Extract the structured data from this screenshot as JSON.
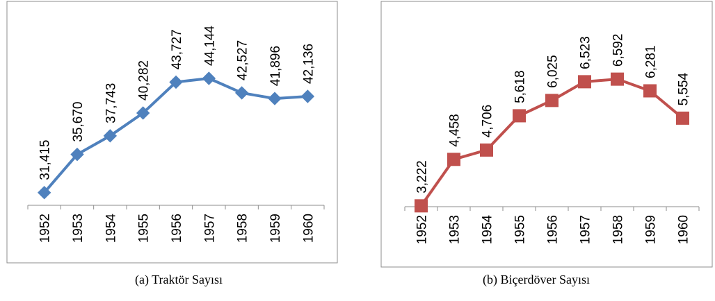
{
  "chart_data": [
    {
      "type": "line",
      "caption": "(a) Traktör Sayısı",
      "categories": [
        "1952",
        "1953",
        "1954",
        "1955",
        "1956",
        "1957",
        "1958",
        "1959",
        "1960"
      ],
      "values": [
        31415,
        35670,
        37743,
        40282,
        43727,
        44144,
        42527,
        41896,
        42136
      ],
      "labels": [
        "31,415",
        "35,670",
        "37,743",
        "40,282",
        "43,727",
        "44,144",
        "42,527",
        "41,896",
        "42,136"
      ],
      "ylim": [
        30000,
        46000
      ],
      "marker": "diamond",
      "color": "#4F81BD",
      "grid": false,
      "legend": "none"
    },
    {
      "type": "line",
      "caption": "(b) Biçerdöver Sayısı",
      "categories": [
        "1952",
        "1953",
        "1954",
        "1955",
        "1956",
        "1957",
        "1958",
        "1959",
        "1960"
      ],
      "values": [
        3222,
        4458,
        4706,
        5618,
        6025,
        6523,
        6592,
        6281,
        5554
      ],
      "labels": [
        "3,222",
        "4,458",
        "4,706",
        "5,618",
        "6,025",
        "6,523",
        "6,592",
        "6,281",
        "5,554"
      ],
      "ylim": [
        3200,
        7000
      ],
      "marker": "square",
      "color": "#C0504D",
      "grid": false,
      "legend": "none"
    }
  ]
}
